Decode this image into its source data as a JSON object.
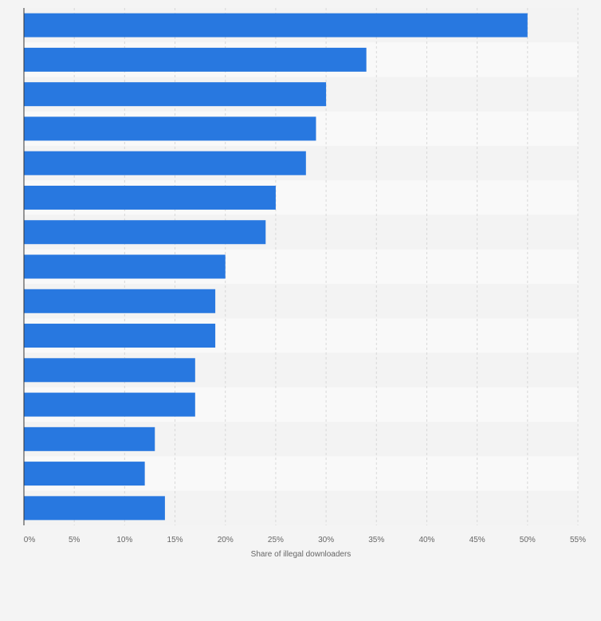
{
  "chart_data": {
    "type": "bar",
    "orientation": "horizontal",
    "categories": [
      "",
      "",
      "",
      "",
      "",
      "",
      "",
      "",
      "",
      "",
      "",
      "",
      "",
      "",
      ""
    ],
    "values": [
      50,
      34,
      30,
      29,
      28,
      25,
      24,
      20,
      19,
      19,
      17,
      17,
      13,
      12,
      14
    ],
    "xlabel": "Share of illegal downloaders",
    "ylabel": "",
    "xlim": [
      0,
      55
    ],
    "x_ticks": [
      "0%",
      "5%",
      "10%",
      "15%",
      "20%",
      "25%",
      "30%",
      "35%",
      "40%",
      "45%",
      "50%",
      "55%"
    ],
    "grid": true,
    "legend": "none",
    "colors": {
      "bar": "#2878e0",
      "band_light": "#f9f9f9",
      "band_dark": "#f3f3f3",
      "grid": "#d8d8d8",
      "axis": "#333333",
      "page_background": "#f4f4f4"
    }
  }
}
